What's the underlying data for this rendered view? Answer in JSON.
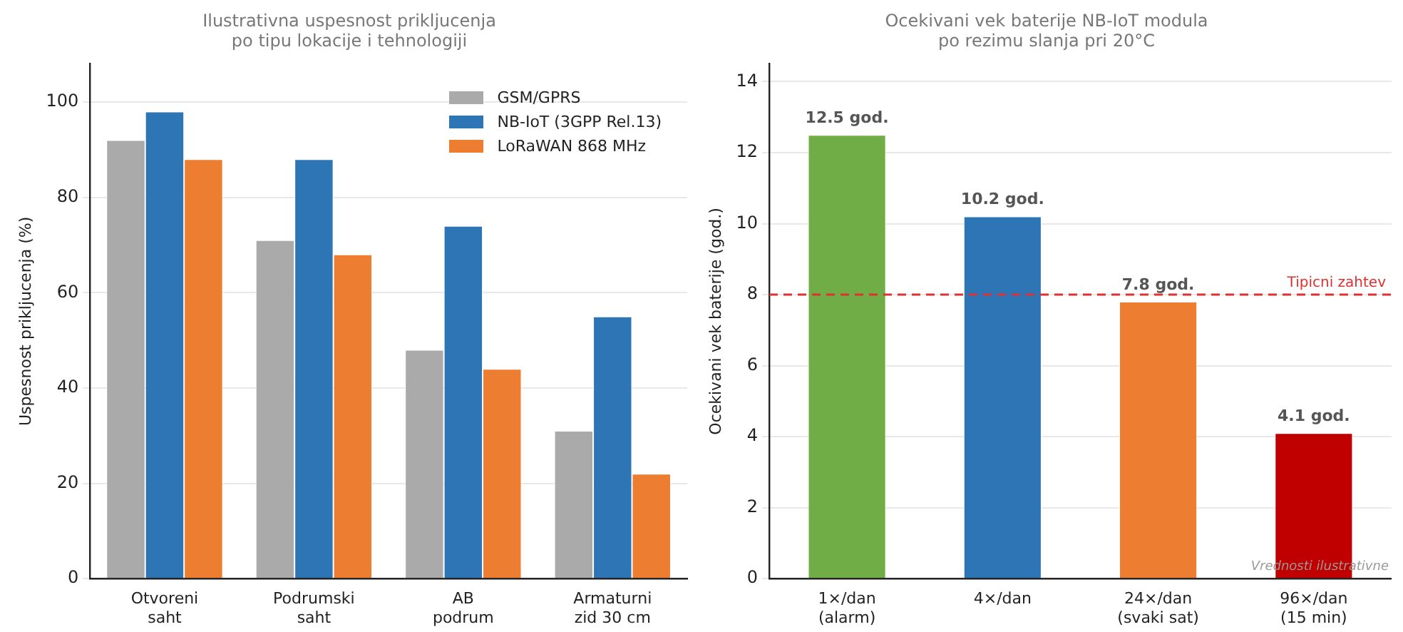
{
  "chart_data": [
    {
      "type": "bar",
      "title": "Ilustrativna uspesnost prikljucenja\npo tipu lokacije i tehnologiji",
      "ylabel": "Uspesnost prikljucenja (%)",
      "categories": [
        "Otvoreni saht",
        "Podrumski saht",
        "AB podrum",
        "Armaturni zid 30 cm"
      ],
      "series": [
        {
          "name": "GSM/GPRS",
          "color": "#aaaaaa",
          "values": [
            92,
            71,
            48,
            31
          ]
        },
        {
          "name": "NB-IoT (3GPP Rel.13)",
          "color": "#2e75b6",
          "values": [
            98,
            88,
            74,
            55
          ]
        },
        {
          "name": "LoRaWAN 868 MHz",
          "color": "#ed7d31",
          "values": [
            88,
            68,
            44,
            22
          ]
        }
      ],
      "ylim": [
        0,
        108
      ],
      "yticks": [
        0,
        20,
        40,
        60,
        80,
        100
      ],
      "grid": "y",
      "legend": "top right"
    },
    {
      "type": "bar",
      "title": "Ocekivani vek baterije NB-IoT modula\npo rezimu slanja pri 20°C",
      "ylabel": "Ocekivani vek baterije (god.)",
      "categories": [
        "1×/dan (alarm)",
        "4×/dan",
        "24×/dan (svaki sat)",
        "96×/dan (15 min)"
      ],
      "values": [
        12.5,
        10.2,
        7.8,
        4.1
      ],
      "colors": [
        "#70ad47",
        "#2e75b6",
        "#ed7d31",
        "#c00000"
      ],
      "value_labels": [
        "12.5 god.",
        "10.2 god.",
        "7.8 god.",
        "4.1 god."
      ],
      "ylim": [
        0,
        14.5
      ],
      "yticks": [
        0,
        2,
        4,
        6,
        8,
        10,
        12,
        14
      ],
      "grid": "y",
      "ref_lines": [
        {
          "axis": "y",
          "value": 8,
          "label": "Tipicni zahtev",
          "color": "#e03030",
          "line_style": "dashed"
        }
      ],
      "annotations": [
        "Vrednosti ilustrativne"
      ]
    }
  ]
}
